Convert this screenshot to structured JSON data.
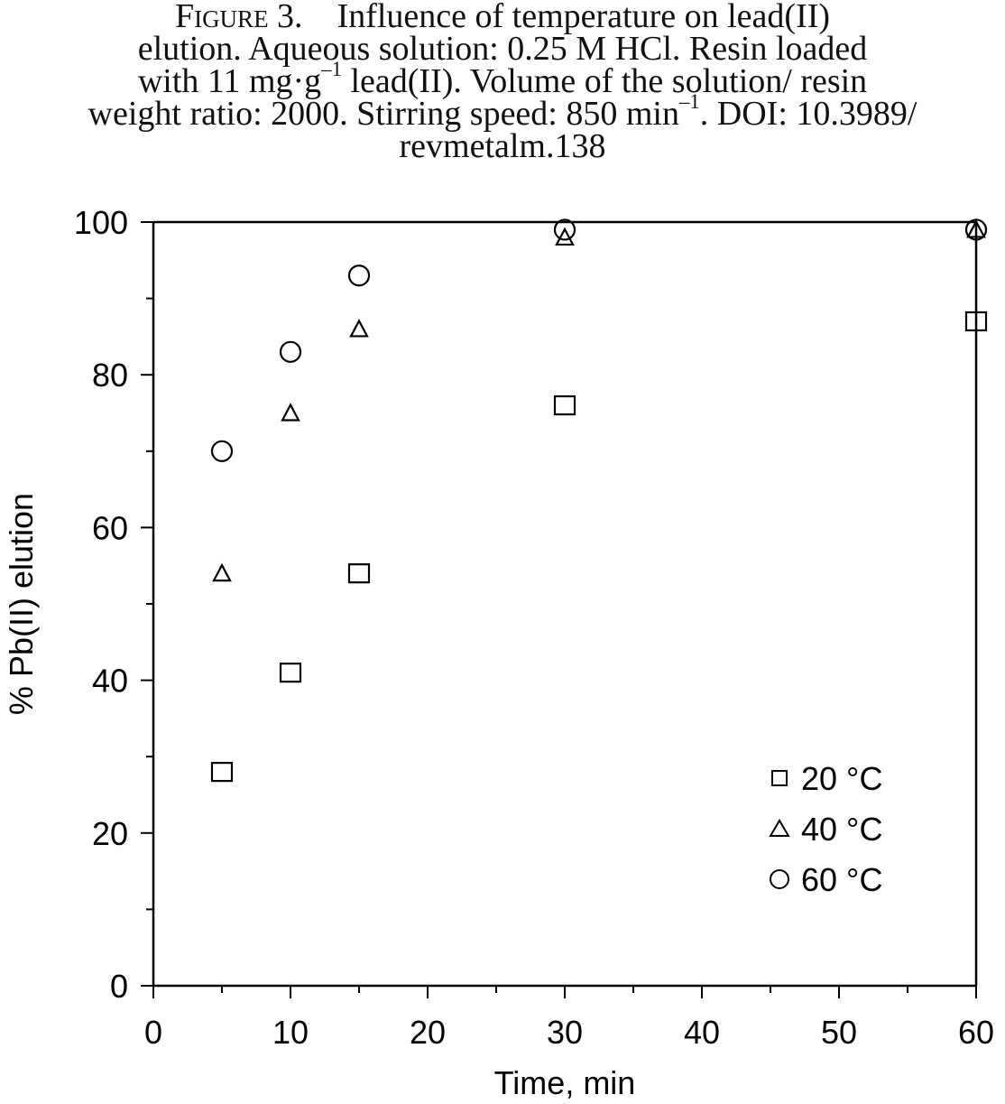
{
  "caption": {
    "fig_prefix": "Figure 3.",
    "line1": "Influence of temperature on lead(II)",
    "line2": "elution. Aqueous solution: 0.25 M HCl. Resin loaded",
    "line3_a": "with 11 mg·g",
    "line3_sup": "–1",
    "line3_b": " lead(II). Volume of the solution/ resin",
    "line4_a": "weight ratio: 2000. Stirring speed: 850 min",
    "line4_sup": "–1",
    "line4_b": ". DOI: 10.3989/",
    "line5": "revmetalm.138"
  },
  "chart_data": {
    "type": "scatter",
    "title": "",
    "xlabel": "Time, min",
    "ylabel": "% Pb(II) elution",
    "xlim": [
      0,
      60
    ],
    "ylim": [
      0,
      100
    ],
    "x_ticks": [
      "0",
      "10",
      "20",
      "30",
      "40",
      "50",
      "60"
    ],
    "y_ticks": [
      "0",
      "20",
      "40",
      "60",
      "80",
      "100"
    ],
    "grid": false,
    "legend_position": "bottom-right",
    "series": [
      {
        "name": "20 °C",
        "marker": "square",
        "x": [
          5,
          10,
          15,
          30,
          60
        ],
        "y": [
          28,
          41,
          54,
          76,
          87
        ]
      },
      {
        "name": "40 °C",
        "marker": "triangle",
        "x": [
          5,
          10,
          15,
          30,
          60
        ],
        "y": [
          54,
          75,
          86,
          98,
          99
        ]
      },
      {
        "name": "60 °C",
        "marker": "circle",
        "x": [
          5,
          10,
          15,
          30,
          60
        ],
        "y": [
          70,
          83,
          93,
          99,
          99
        ]
      }
    ],
    "color": "#000000"
  }
}
